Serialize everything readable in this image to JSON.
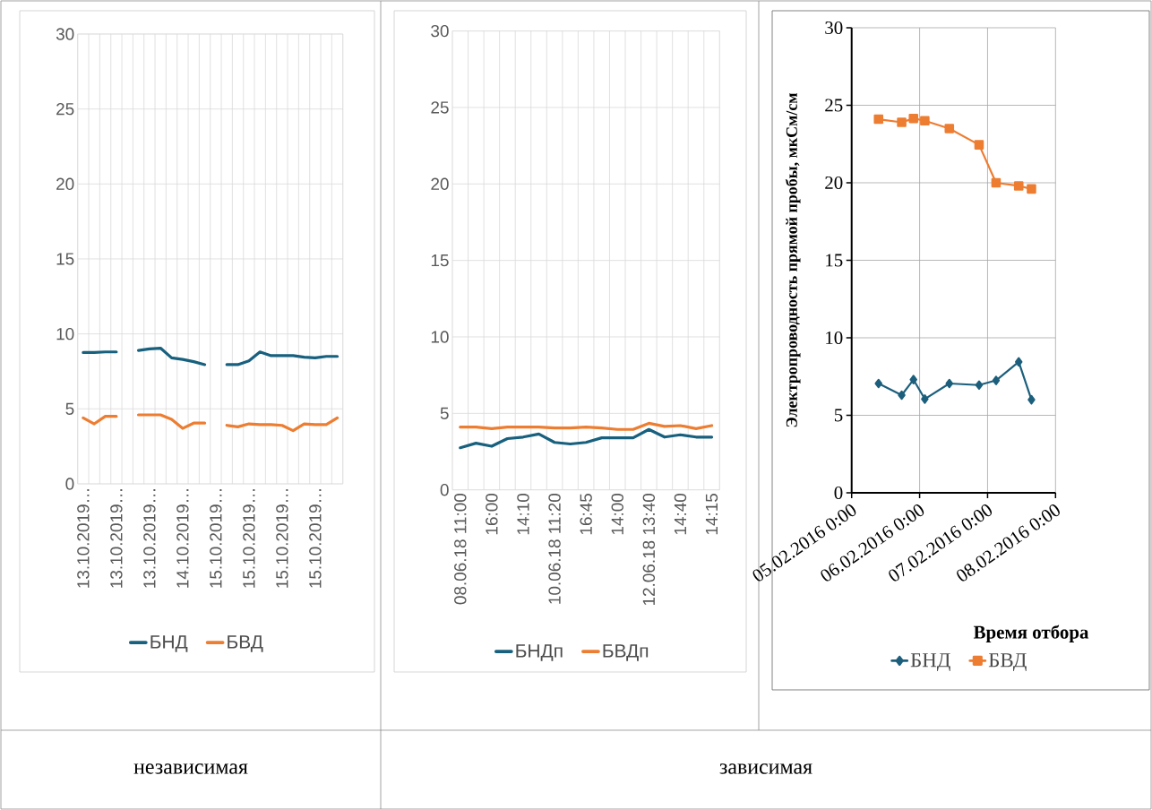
{
  "chart_data": [
    {
      "type": "line",
      "categories": [
        "13.10.2019…",
        null,
        null,
        "13.10.2019…",
        null,
        null,
        "13.10.2019…",
        null,
        null,
        "14.10.2019…",
        null,
        null,
        "15.10.2019…",
        null,
        null,
        "15.10.2019…",
        null,
        null,
        "15.10.2019…",
        null,
        null,
        "15.10.2019…",
        null,
        null
      ],
      "series": [
        {
          "name": "БНД",
          "color": "#17607e",
          "values": [
            8.76,
            8.76,
            8.8,
            8.8,
            null,
            8.9,
            9.0,
            9.05,
            8.4,
            8.3,
            8.15,
            7.95,
            null,
            7.95,
            7.95,
            8.2,
            8.8,
            8.55,
            8.55,
            8.55,
            8.45,
            8.4,
            8.5,
            8.5
          ]
        },
        {
          "name": "БВД",
          "color": "#ed7d31",
          "values": [
            4.4,
            4.0,
            4.5,
            4.5,
            null,
            4.6,
            4.6,
            4.6,
            4.3,
            3.7,
            4.05,
            4.05,
            null,
            3.9,
            3.8,
            4.0,
            3.95,
            3.95,
            3.9,
            3.55,
            4.0,
            3.95,
            3.95,
            4.4
          ]
        }
      ],
      "ylim": [
        0,
        30
      ],
      "yticks": [
        0,
        5,
        10,
        15,
        20,
        25,
        30
      ],
      "grid": true,
      "legend": "bottom",
      "marker": "none",
      "line_style": "solid",
      "annotations": [
        "независимая"
      ]
    },
    {
      "type": "line",
      "categories": [
        "08.06.18 11:00",
        null,
        "16:00",
        null,
        "14:10",
        null,
        "10.06.18 11:20",
        null,
        "16:45",
        null,
        "14:00",
        null,
        "12.06.18 13:40",
        null,
        "14:40",
        null,
        "14:15"
      ],
      "series": [
        {
          "name": "БНДп",
          "color": "#17607e",
          "values": [
            2.75,
            3.05,
            2.85,
            3.35,
            3.45,
            3.65,
            3.1,
            3.0,
            3.1,
            3.4,
            3.4,
            3.4,
            3.95,
            3.45,
            3.6,
            3.45,
            3.45
          ]
        },
        {
          "name": "БВДп",
          "color": "#ed7d31",
          "values": [
            4.1,
            4.1,
            4.0,
            4.1,
            4.1,
            4.1,
            4.05,
            4.05,
            4.1,
            4.05,
            3.95,
            3.95,
            4.35,
            4.15,
            4.2,
            4.0,
            4.2
          ]
        }
      ],
      "ylim": [
        0,
        30
      ],
      "yticks": [
        0,
        5,
        10,
        15,
        20,
        25,
        30
      ],
      "grid": true,
      "legend": "bottom",
      "marker": "none",
      "line_style": "solid",
      "annotations": [
        "зависимая"
      ]
    },
    {
      "type": "line",
      "xlabel": "Время отбора",
      "ylabel": "Электропроводность прямой пробы, мкСм/см",
      "x": [
        "2016-02-05T09:30",
        "2016-02-05T17:40",
        "2016-02-05T21:50",
        "2016-02-06T01:50",
        "2016-02-06T10:30",
        "2016-02-06T21:00",
        "2016-02-07T03:00",
        "2016-02-07T11:00",
        "2016-02-07T15:30"
      ],
      "series": [
        {
          "name": "БНД",
          "color": "#1c5f7c",
          "marker": "diamond",
          "values": [
            7.05,
            6.3,
            7.3,
            6.05,
            7.05,
            6.95,
            7.25,
            8.45,
            6.0
          ]
        },
        {
          "name": "БВД",
          "color": "#ed7d31",
          "marker": "square",
          "values": [
            24.1,
            23.9,
            24.15,
            24.0,
            23.5,
            22.45,
            20.0,
            19.8,
            19.6
          ]
        }
      ],
      "xlim": [
        "2016-02-05T00:00",
        "2016-02-08T00:00"
      ],
      "xticks": [
        {
          "value": "2016-02-05T00:00",
          "label": "05.02.2016 0:00"
        },
        {
          "value": "2016-02-06T00:00",
          "label": "06.02.2016 0:00"
        },
        {
          "value": "2016-02-07T00:00",
          "label": "07.02.2016 0:00"
        },
        {
          "value": "2016-02-08T00:00",
          "label": "08.02.2016 0:00"
        }
      ],
      "ylim": [
        0,
        30
      ],
      "yticks": [
        0,
        5,
        10,
        15,
        20,
        25,
        30
      ],
      "grid": true,
      "legend": "bottom",
      "line_style": "solid"
    }
  ]
}
